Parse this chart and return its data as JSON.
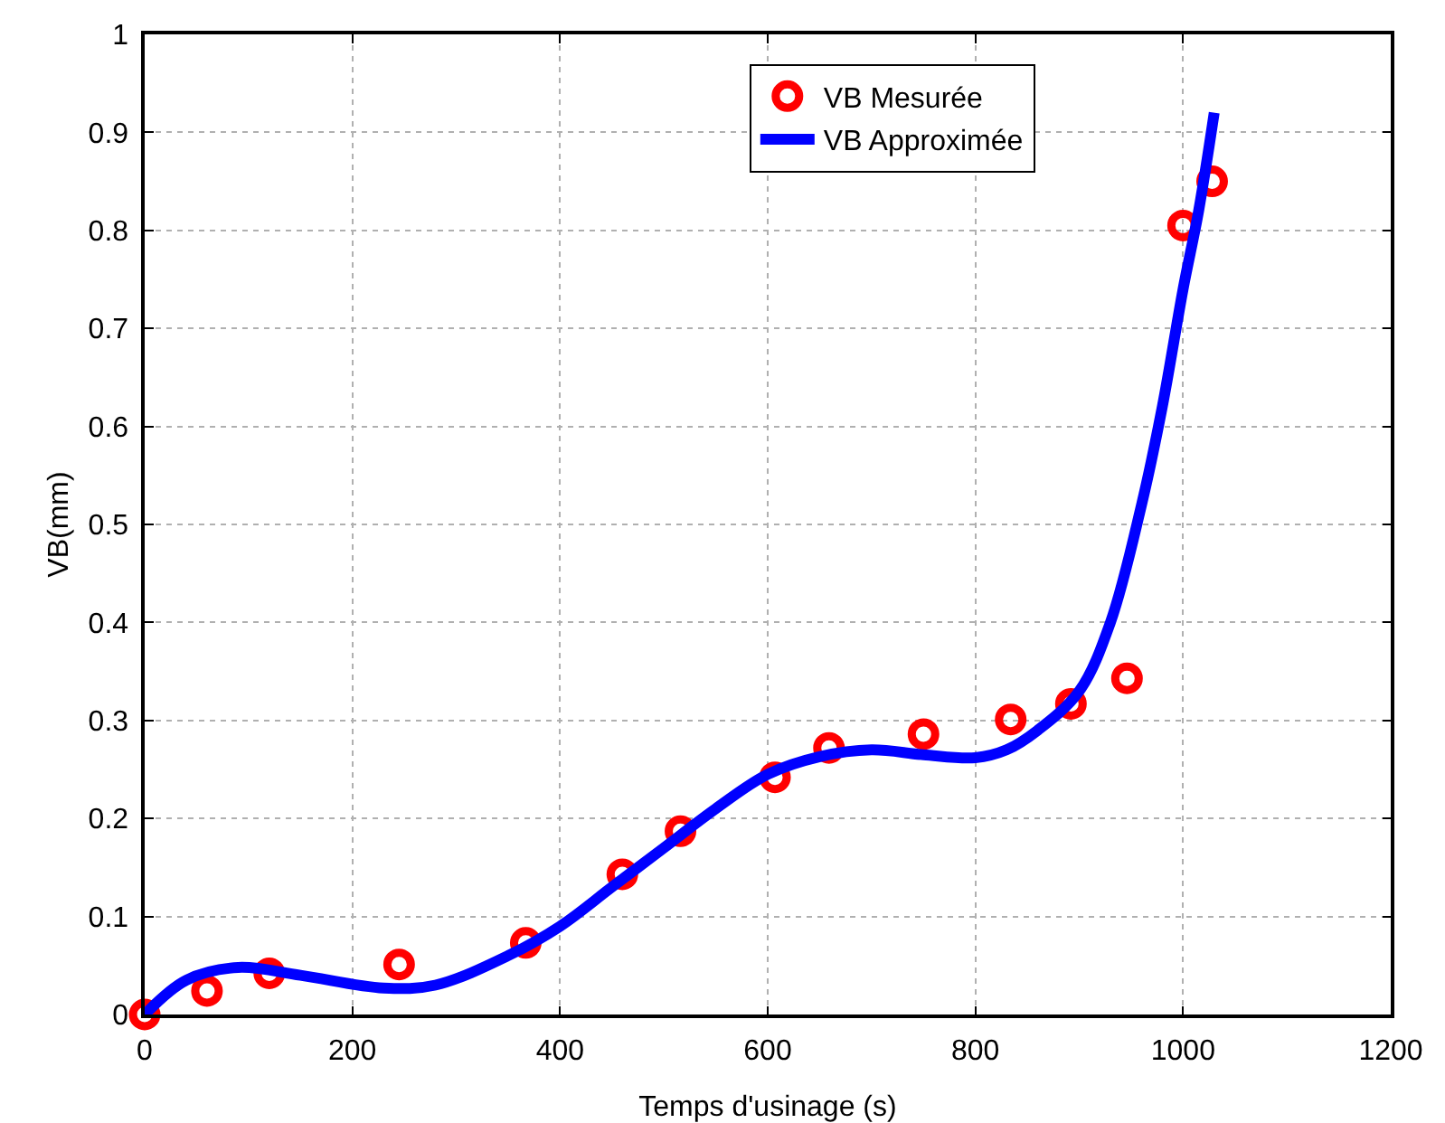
{
  "chart_data": {
    "type": "scatter",
    "xlabel": "Temps d'usinage (s)",
    "ylabel": "VB(mm)",
    "xlim": [
      0,
      1200
    ],
    "xticks": [
      0,
      200,
      400,
      600,
      800,
      1000,
      1200
    ],
    "ylim": [
      0,
      1
    ],
    "yticks": [
      0,
      0.1,
      0.2,
      0.3,
      0.4,
      0.5,
      0.6,
      0.7,
      0.8,
      0.9,
      1
    ],
    "grid": true,
    "legend": "top",
    "marker": "circle",
    "series": [
      {
        "name": "VB Mesurée",
        "color": "#ff0000",
        "x": [
          0,
          60,
          120,
          245,
          367,
          460,
          516,
          607,
          659,
          750,
          834,
          892,
          946,
          1000,
          1028
        ],
        "values": [
          0,
          0.024,
          0.042,
          0.051,
          0.073,
          0.143,
          0.187,
          0.242,
          0.272,
          0.286,
          0.301,
          0.317,
          0.343,
          0.805,
          0.85
        ]
      },
      {
        "name": "VB Approximée",
        "type": "line",
        "color": "#0000ff",
        "marker": "none",
        "x": [
          0,
          40,
          90,
          150,
          230,
          280,
          350,
          400,
          450,
          500,
          550,
          600,
          650,
          700,
          750,
          800,
          830,
          860,
          900,
          930,
          960,
          980,
          1000,
          1015,
          1030
        ],
        "values": [
          0,
          0.035,
          0.048,
          0.04,
          0.027,
          0.03,
          0.06,
          0.09,
          0.13,
          0.17,
          0.21,
          0.245,
          0.263,
          0.27,
          0.265,
          0.262,
          0.27,
          0.29,
          0.33,
          0.4,
          0.52,
          0.62,
          0.74,
          0.82,
          0.92
        ]
      }
    ]
  }
}
